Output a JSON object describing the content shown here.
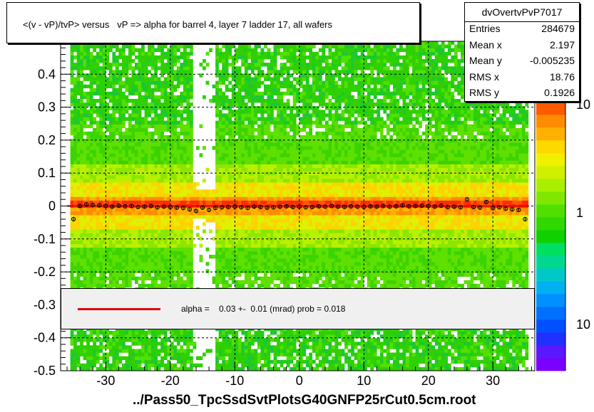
{
  "title": "<(v - vP)/tvP> versus   vP => alpha for barrel 4, layer 7 ladder 17, all wafers",
  "stats": {
    "name": "dvOvertvPvP7017",
    "rows": [
      {
        "key": "Entries",
        "value": "284679"
      },
      {
        "key": "Mean x",
        "value": "2.197"
      },
      {
        "key": "Mean y",
        "value": "-0.005235"
      },
      {
        "key": "RMS x",
        "value": "18.76"
      },
      {
        "key": "RMS y",
        "value": "0.1926"
      }
    ]
  },
  "fit": {
    "text": "alpha =    0.03 +-  0.01 (mrad) prob = 0.018",
    "line_color": "#e00000"
  },
  "x_axis_title": "../Pass50_TpcSsdSvtPlotsG40GNFP25rCut0.5cm.root",
  "colors": {
    "marker": "#000000",
    "fit_line": "#e00000",
    "grid": "#000000"
  },
  "chart_data": {
    "type": "heatmap",
    "xlim": [
      -37,
      36.5
    ],
    "ylim": [
      -0.5,
      0.5
    ],
    "x_ticks": [
      -30,
      -20,
      -10,
      0,
      10,
      20,
      30
    ],
    "y_ticks": [
      -0.5,
      -0.4,
      -0.3,
      -0.2,
      -0.1,
      0,
      0.1,
      0.2,
      0.3,
      0.4
    ],
    "grid": true,
    "z_scale": "log",
    "z_tick_labels": [
      "1",
      "10",
      "10"
    ],
    "profile": {
      "x": [
        -35,
        -34,
        -33,
        -32,
        -31,
        -30,
        -29,
        -28,
        -27,
        -26,
        -25,
        -24,
        -23,
        -22,
        -21,
        -20,
        -19,
        -18,
        -17,
        -16,
        -15,
        -14,
        -13,
        -12,
        -11,
        -10,
        -9,
        -8,
        -7,
        -6,
        -5,
        -4,
        -3,
        -2,
        -1,
        0,
        1,
        2,
        3,
        4,
        5,
        6,
        7,
        8,
        9,
        10,
        11,
        12,
        13,
        14,
        15,
        16,
        17,
        18,
        19,
        20,
        21,
        22,
        23,
        24,
        25,
        26,
        27,
        28,
        29,
        30,
        31,
        32,
        33,
        34,
        35
      ],
      "y": [
        -0.04,
        0.0,
        0.005,
        0.003,
        0.002,
        0.0,
        -0.002,
        0.001,
        -0.001,
        0.0,
        -0.003,
        -0.002,
        0.0,
        -0.004,
        -0.002,
        -0.003,
        -0.005,
        -0.006,
        -0.01,
        -0.015,
        -0.005,
        -0.012,
        -0.006,
        -0.004,
        -0.003,
        -0.002,
        -0.004,
        -0.006,
        -0.002,
        -0.003,
        -0.005,
        -0.004,
        -0.002,
        -0.001,
        -0.003,
        -0.002,
        -0.004,
        -0.003,
        -0.001,
        -0.002,
        0.0,
        -0.002,
        -0.003,
        -0.001,
        -0.002,
        -0.003,
        -0.001,
        -0.002,
        0.0,
        -0.002,
        -0.001,
        0.002,
        -0.001,
        0.0,
        0.001,
        0.0,
        -0.002,
        0.001,
        -0.003,
        -0.002,
        -0.004,
        0.02,
        -0.003,
        -0.005,
        0.012,
        -0.006,
        -0.004,
        -0.008,
        -0.01,
        -0.012,
        -0.04
      ]
    },
    "fit_line": {
      "slope_mrad": 0.03,
      "error_mrad": 0.01,
      "prob": 0.018
    }
  }
}
